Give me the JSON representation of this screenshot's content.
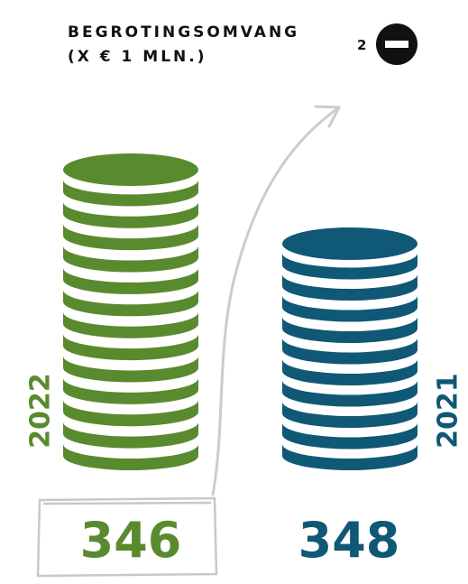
{
  "header": {
    "title": "BEGROTINGSOMVANG",
    "subtitle": "(X € 1 MLN.)",
    "badge": "2"
  },
  "stacks": [
    {
      "year": "2022",
      "value": 346
    },
    {
      "year": "2021",
      "value": 348
    }
  ]
}
